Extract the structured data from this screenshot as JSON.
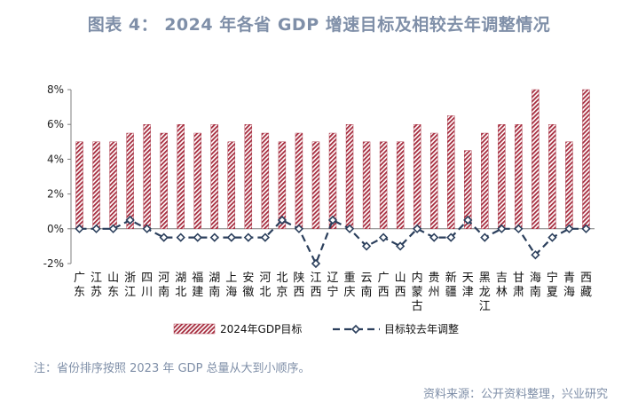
{
  "header": {
    "title": "图表 4：  2024 年各省 GDP 增速目标及相较去年调整情况"
  },
  "footer": {
    "note": "注：省份排序按照 2023 年 GDP 总量从大到小顺序。",
    "source": "资料来源：公开资料整理，兴业研究"
  },
  "colors": {
    "bar_stripe": "#a52a3c",
    "line": "#2b3f5c",
    "axis": "#7f7f7f"
  },
  "chart_data": {
    "type": "bar",
    "categories": [
      [
        "广",
        "东"
      ],
      [
        "江",
        "苏"
      ],
      [
        "山",
        "东"
      ],
      [
        "浙",
        "江"
      ],
      [
        "四",
        "川"
      ],
      [
        "河",
        "南"
      ],
      [
        "湖",
        "北"
      ],
      [
        "福",
        "建"
      ],
      [
        "湖",
        "南"
      ],
      [
        "上",
        "海"
      ],
      [
        "安",
        "徽"
      ],
      [
        "河",
        "北"
      ],
      [
        "北",
        "京"
      ],
      [
        "陕",
        "西"
      ],
      [
        "江",
        "西"
      ],
      [
        "辽",
        "宁"
      ],
      [
        "重",
        "庆"
      ],
      [
        "云",
        "南"
      ],
      [
        "广",
        "西"
      ],
      [
        "山",
        "西"
      ],
      [
        "内",
        "蒙",
        "古"
      ],
      [
        "贵",
        "州"
      ],
      [
        "新",
        "疆"
      ],
      [
        "天",
        "津"
      ],
      [
        "黑",
        "龙",
        "江"
      ],
      [
        "吉",
        "林"
      ],
      [
        "甘",
        "肃"
      ],
      [
        "海",
        "南"
      ],
      [
        "宁",
        "夏"
      ],
      [
        "青",
        "海"
      ],
      [
        "西",
        "藏"
      ]
    ],
    "series": [
      {
        "name": "2024年GDP目标",
        "type": "bar",
        "values": [
          5,
          5,
          5,
          5.5,
          6,
          5.5,
          6,
          5.5,
          6,
          5,
          6,
          5.5,
          5,
          5.5,
          5,
          5.5,
          6,
          5,
          5,
          5,
          6,
          5.5,
          6.5,
          4.5,
          5.5,
          6,
          6,
          8,
          6,
          5,
          8
        ]
      },
      {
        "name": "目标较去年调整",
        "type": "line",
        "values": [
          0,
          0,
          0,
          0.5,
          0,
          -0.5,
          -0.5,
          -0.5,
          -0.5,
          -0.5,
          -0.5,
          -0.5,
          0.5,
          0,
          -2,
          0.5,
          0,
          -1,
          -0.5,
          -1,
          0,
          -0.5,
          -0.5,
          0.5,
          -0.5,
          0,
          0,
          -1.5,
          -0.5,
          0,
          0
        ]
      }
    ],
    "ylim": [
      -2,
      8
    ],
    "yticks": [
      "-2%",
      "0%",
      "2%",
      "4%",
      "6%",
      "8%"
    ],
    "ytick_values": [
      -2,
      0,
      2,
      4,
      6,
      8
    ],
    "legend_position": "bottom-center",
    "grid": false
  }
}
